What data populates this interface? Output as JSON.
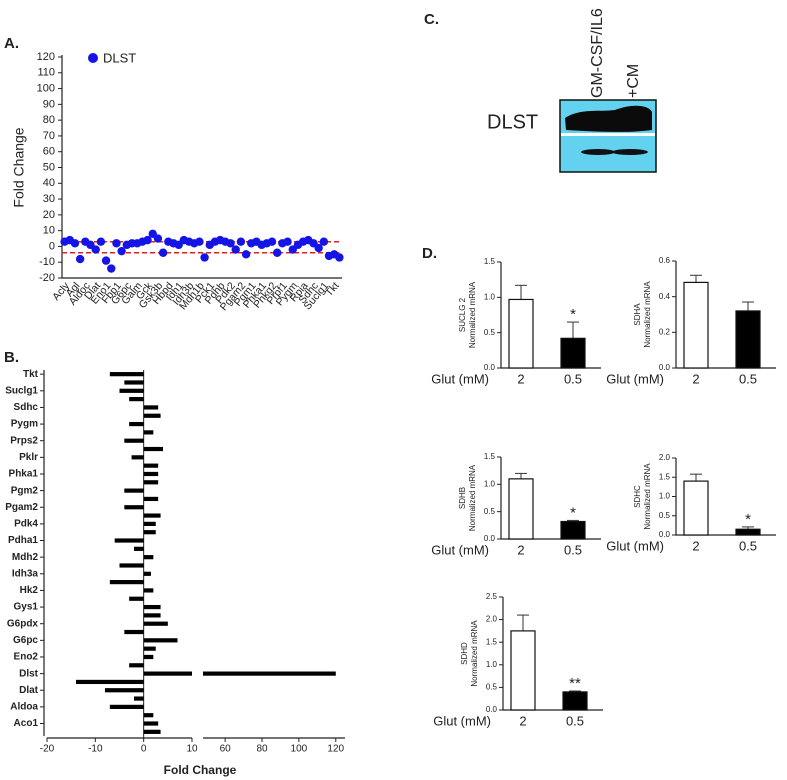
{
  "chart_data": [
    {
      "type": "scatter",
      "panel_label": "A.",
      "ylabel": "Fold Change",
      "categories": [
        "Acly",
        null,
        "Agl",
        null,
        "Aldoc",
        null,
        "Dlat",
        null,
        "Eno1",
        null,
        "Fbp1",
        null,
        "G6pc",
        null,
        "Galm",
        null,
        "Gck",
        null,
        "Gsk3b",
        null,
        "Hbpd",
        null,
        "Idh1",
        null,
        "Idh3b",
        null,
        "Mdh1b",
        null,
        "Pck1",
        null,
        "Pdhb",
        null,
        "Pdk2",
        null,
        "Pgam2",
        null,
        "Pgm1",
        null,
        "Phka1",
        null,
        "Phkg2",
        null,
        "Prpf1",
        null,
        "Pygm",
        null,
        "Rpia",
        null,
        "Sdhc",
        null,
        "Suclg1",
        null,
        "Tkt",
        null
      ],
      "series": [
        {
          "name": "DLST",
          "color": "#1414e6",
          "values": [
            3,
            4,
            2,
            -8,
            3,
            1,
            -2,
            3,
            -9,
            -14,
            2,
            -3,
            1,
            2,
            2,
            3,
            4,
            8,
            5,
            -4,
            3,
            2,
            1,
            4,
            3,
            2,
            3,
            -7,
            1,
            3,
            4,
            3,
            2,
            -2,
            3,
            -5,
            2,
            3,
            1,
            2,
            3,
            -4,
            2,
            3,
            -2,
            1,
            3,
            4,
            2,
            -1,
            3,
            -6,
            -5,
            -7
          ]
        }
      ],
      "ylim": [
        -20,
        120
      ],
      "yticks": [
        -20,
        -10,
        0,
        10,
        20,
        30,
        40,
        50,
        60,
        70,
        80,
        90,
        100,
        110,
        120
      ],
      "reference_lines": [
        3,
        -4
      ],
      "reference_color": "#e02020"
    },
    {
      "type": "hbar",
      "panel_label": "B.",
      "xlabel": "Fold Change",
      "categories": [
        "Tkt",
        null,
        "Suclg1",
        null,
        "Sdhc",
        null,
        "Pygm",
        null,
        "Prps2",
        null,
        "Pklr",
        null,
        "Phka1",
        null,
        "Pgm2",
        null,
        "Pgam2",
        null,
        "Pdk4",
        null,
        "Pdha1",
        null,
        "Mdh2",
        null,
        "Idh3a",
        null,
        "Hk2",
        null,
        "Gys1",
        null,
        "G6pdx",
        null,
        "G6pc",
        null,
        "Eno2",
        null,
        "Dlst",
        null,
        "Dlat",
        null,
        "Aldoa",
        null,
        "Aco1",
        null
      ],
      "values": [
        -7,
        -4,
        -5,
        -3,
        3,
        3.5,
        -3,
        2,
        -4,
        4,
        -2.5,
        3,
        3,
        3,
        -4,
        3,
        -4,
        3.5,
        2.5,
        2.5,
        -6,
        -2,
        2,
        -5,
        1.5,
        -7,
        2,
        -3,
        3.5,
        3.5,
        5,
        -4,
        7,
        2.5,
        2,
        -3,
        120,
        -14,
        -8,
        -2,
        -7,
        2,
        3,
        3.5
      ],
      "color": "#000000",
      "xlim": [
        -20,
        125
      ],
      "xbreak": [
        10,
        48
      ],
      "xticks": [
        -20,
        -10,
        0,
        10,
        60,
        80,
        100,
        120
      ]
    },
    {
      "type": "bar",
      "panel_label": "D.",
      "ylabel": "SUCLG 2",
      "ylabel_unit": "Normalized mRNA",
      "xlabel": "Glut (mM)",
      "categories": [
        "2",
        "0.5"
      ],
      "values": [
        0.97,
        0.42
      ],
      "errors": [
        0.2,
        0.23
      ],
      "colors": [
        "#ffffff",
        "#000000"
      ],
      "ylim": [
        0,
        1.5
      ],
      "yticks": [
        {
          "value": 0,
          "label": "0.0"
        },
        {
          "value": 0.5,
          "label": "0.5"
        },
        {
          "value": 1,
          "label": "1.0"
        },
        {
          "value": 1.5,
          "label": "1.5"
        }
      ],
      "significance": [
        null,
        "*"
      ]
    },
    {
      "type": "bar",
      "ylabel": "SDHA",
      "ylabel_unit": "Normalized mRNA",
      "xlabel": "Glut (mM)",
      "categories": [
        "2",
        "0.5"
      ],
      "values": [
        0.48,
        0.32
      ],
      "errors": [
        0.04,
        0.05
      ],
      "colors": [
        "#ffffff",
        "#000000"
      ],
      "ylim": [
        0,
        0.6
      ],
      "yticks": [
        {
          "value": 0,
          "label": "0.0"
        },
        0.2,
        0.4,
        0.6
      ]
    },
    {
      "type": "bar",
      "ylabel": "SDHB",
      "ylabel_unit": "Normalized mRNA",
      "xlabel": "Glut (mM)",
      "categories": [
        "2",
        "0.5"
      ],
      "values": [
        1.1,
        0.32
      ],
      "errors": [
        0.1,
        0.02
      ],
      "colors": [
        "#ffffff",
        "#000000"
      ],
      "ylim": [
        0,
        1.5
      ],
      "yticks": [
        {
          "value": 0,
          "label": "0.0"
        },
        0.5,
        {
          "value": 1,
          "label": "1.0"
        },
        1.5
      ],
      "significance": [
        null,
        "*"
      ]
    },
    {
      "type": "bar",
      "ylabel": "SDHC",
      "ylabel_unit": "Normalized mRNA",
      "xlabel": "Glut (mM)",
      "categories": [
        "2",
        "0.5"
      ],
      "values": [
        1.4,
        0.15
      ],
      "errors": [
        0.18,
        0.06
      ],
      "colors": [
        "#ffffff",
        "#000000"
      ],
      "ylim": [
        0,
        2
      ],
      "yticks": [
        {
          "value": 0,
          "label": "0.0"
        },
        0.5,
        {
          "value": 1,
          "label": "1.0"
        },
        1.5,
        {
          "value": 2,
          "label": "2.0"
        }
      ],
      "significance": [
        null,
        "*"
      ]
    },
    {
      "type": "bar",
      "ylabel": "SDHD",
      "ylabel_unit": "Normalized mRNA",
      "xlabel": "Glut (mM)",
      "categories": [
        "2",
        "0.5"
      ],
      "values": [
        1.75,
        0.4
      ],
      "errors": [
        0.35,
        0.02
      ],
      "colors": [
        "#ffffff",
        "#000000"
      ],
      "ylim": [
        0,
        2.5
      ],
      "yticks": [
        {
          "value": 0,
          "label": "0.0"
        },
        0.5,
        {
          "value": 1,
          "label": "1.0"
        },
        1.5,
        {
          "value": 2,
          "label": "2.0"
        },
        2.5
      ],
      "significance": [
        null,
        "**"
      ]
    }
  ],
  "blot": {
    "panel_label": "C.",
    "protein": "DLST",
    "lanes": [
      "GM-CSF/IL6",
      "+CM"
    ]
  }
}
